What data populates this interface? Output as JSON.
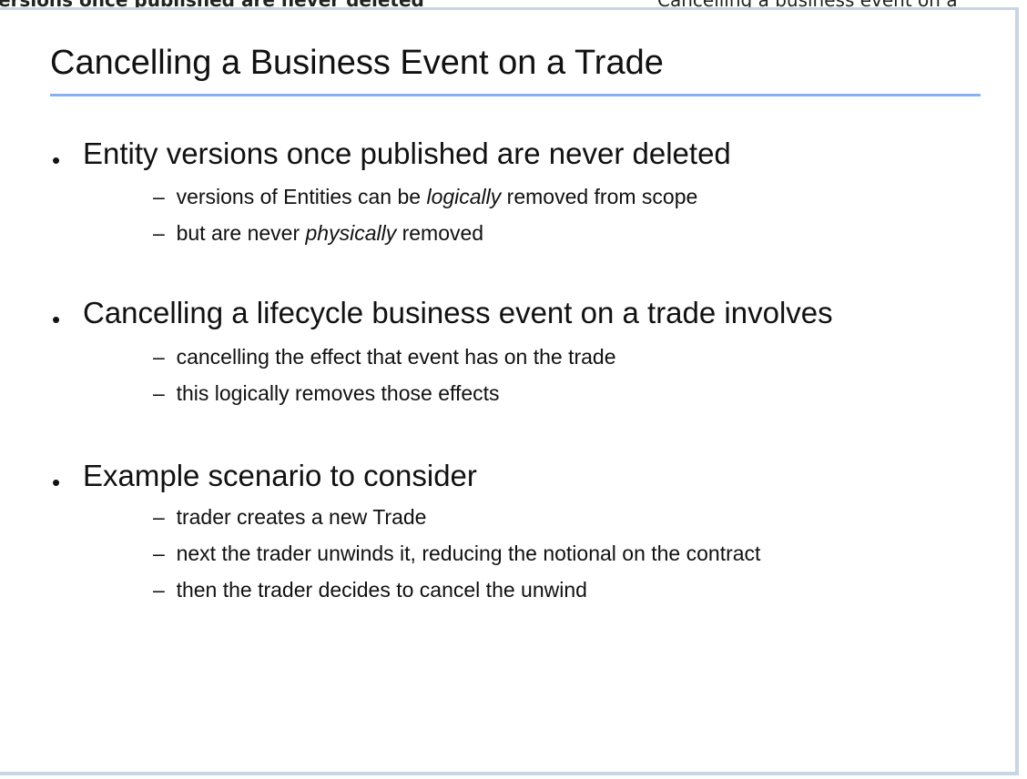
{
  "background": {
    "left_text": "ersions once published are never deleted",
    "right_text": "Cancelling a business event on a"
  },
  "slide": {
    "title": "Cancelling a Business Event on a Trade",
    "bullets": [
      {
        "text": "Entity versions once published are never deleted",
        "subs": [
          {
            "pre": "versions of Entities can be ",
            "em": "logically",
            "post": " removed from scope"
          },
          {
            "pre": "but are never ",
            "em": "physically",
            "post": " removed"
          }
        ]
      },
      {
        "text": "Cancelling a lifecycle business event on a trade involves",
        "subs": [
          {
            "pre": "cancelling the effect that event has on the trade",
            "em": "",
            "post": ""
          },
          {
            "pre": "this logically removes those effects",
            "em": "",
            "post": ""
          }
        ]
      },
      {
        "text": "Example scenario to consider",
        "subs": [
          {
            "pre": "trader creates a new Trade",
            "em": "",
            "post": ""
          },
          {
            "pre": "next the trader unwinds it, reducing the notional on the contract",
            "em": "",
            "post": ""
          },
          {
            "pre": "then the trader decides to cancel the unwind",
            "em": "",
            "post": ""
          }
        ]
      }
    ],
    "bullet_glyph": "•",
    "sub_glyph": "–",
    "accent_color": "#8ab0ef",
    "frame_color": "#c9d4e4"
  }
}
